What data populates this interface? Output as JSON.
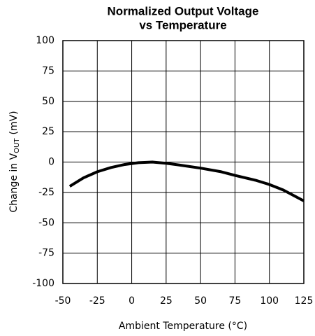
{
  "chart_data": {
    "type": "line",
    "title": [
      "Normalized Output Voltage",
      "vs Temperature"
    ],
    "xlabel": "Ambient Temperature (°C)",
    "ylabel": [
      "Change in V",
      "OUT",
      "(mV)"
    ],
    "x": [
      -45,
      -35,
      -25,
      -15,
      -5,
      5,
      15,
      25,
      35,
      50,
      65,
      75,
      90,
      100,
      110,
      125
    ],
    "series": [
      {
        "color": "#000000",
        "values": [
          -20,
          -13,
          -8,
          -4.5,
          -2,
          -0.5,
          0,
          -1,
          -2.5,
          -5,
          -8,
          -11,
          -15,
          -18.5,
          -23,
          -32
        ]
      }
    ],
    "xlim": [
      -50,
      125
    ],
    "xticks": [
      -50,
      -25,
      0,
      25,
      50,
      75,
      100,
      125
    ],
    "ylim": [
      -100,
      100
    ],
    "yticks": [
      -100,
      -75,
      -50,
      -25,
      0,
      25,
      50,
      75,
      100
    ],
    "grid": true
  }
}
